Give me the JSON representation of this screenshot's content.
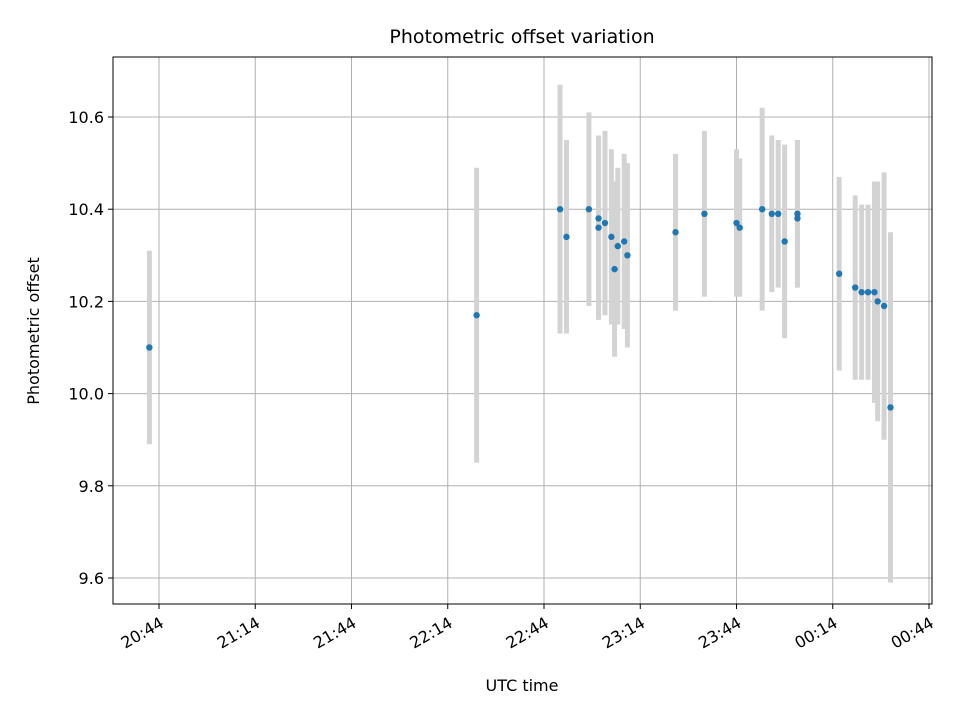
{
  "chart_data": {
    "type": "scatter",
    "title": "Photometric offset variation",
    "xlabel": "UTC time",
    "ylabel": "Photometric offset",
    "grid": true,
    "x_ticks": [
      "20:44",
      "21:14",
      "21:44",
      "22:14",
      "22:44",
      "23:14",
      "23:44",
      "00:14",
      "00:44"
    ],
    "y_ticks": [
      "9.6",
      "9.8",
      "10.0",
      "10.2",
      "10.4",
      "10.6"
    ],
    "xlim": [
      "20:43",
      "00:44"
    ],
    "ylim": [
      9.54,
      10.73
    ],
    "colors": {
      "point": "#1f77b4",
      "errorbar": "#d3d3d3",
      "grid": "#b0b0b0"
    },
    "series": [
      {
        "points": [
          {
            "x": "20:41",
            "y": 10.1,
            "err": 0.21
          },
          {
            "x": "22:23",
            "y": 10.17,
            "err": 0.32
          },
          {
            "x": "22:49",
            "y": 10.4,
            "err": 0.27
          },
          {
            "x": "22:51",
            "y": 10.34,
            "err": 0.21
          },
          {
            "x": "22:58",
            "y": 10.4,
            "err": 0.21
          },
          {
            "x": "23:01",
            "y": 10.36,
            "err": 0.2
          },
          {
            "x": "23:01",
            "y": 10.38,
            "err": 0.18
          },
          {
            "x": "23:03",
            "y": 10.37,
            "err": 0.2
          },
          {
            "x": "23:05",
            "y": 10.34,
            "err": 0.19
          },
          {
            "x": "23:06",
            "y": 10.27,
            "err": 0.19
          },
          {
            "x": "23:07",
            "y": 10.32,
            "err": 0.17
          },
          {
            "x": "23:09",
            "y": 10.33,
            "err": 0.19
          },
          {
            "x": "23:10",
            "y": 10.3,
            "err": 0.2
          },
          {
            "x": "23:25",
            "y": 10.35,
            "err": 0.17
          },
          {
            "x": "23:34",
            "y": 10.39,
            "err": 0.18
          },
          {
            "x": "23:44",
            "y": 10.37,
            "err": 0.16
          },
          {
            "x": "23:45",
            "y": 10.36,
            "err": 0.15
          },
          {
            "x": "23:52",
            "y": 10.4,
            "err": 0.22
          },
          {
            "x": "23:55",
            "y": 10.39,
            "err": 0.17
          },
          {
            "x": "23:57",
            "y": 10.39,
            "err": 0.16
          },
          {
            "x": "23:59",
            "y": 10.33,
            "err": 0.21
          },
          {
            "x": "00:03",
            "y": 10.39,
            "err": 0.16
          },
          {
            "x": "00:03",
            "y": 10.38,
            "err": 0.15
          },
          {
            "x": "00:16",
            "y": 10.26,
            "err": 0.21
          },
          {
            "x": "00:21",
            "y": 10.23,
            "err": 0.2
          },
          {
            "x": "00:23",
            "y": 10.22,
            "err": 0.19
          },
          {
            "x": "00:25",
            "y": 10.22,
            "err": 0.19
          },
          {
            "x": "00:27",
            "y": 10.22,
            "err": 0.24
          },
          {
            "x": "00:28",
            "y": 10.2,
            "err": 0.26
          },
          {
            "x": "00:30",
            "y": 10.19,
            "err": 0.29
          },
          {
            "x": "00:32",
            "y": 9.97,
            "err": 0.38
          }
        ]
      }
    ]
  }
}
